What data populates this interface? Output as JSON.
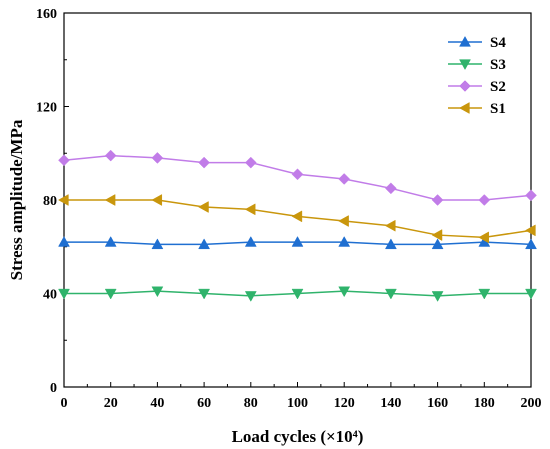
{
  "chart_data": {
    "type": "line",
    "title": "",
    "xlabel": "Load cycles (×10⁴)",
    "ylabel": "Stress amplitude/MPa",
    "xlim": [
      0,
      200
    ],
    "ylim": [
      0,
      160
    ],
    "xticks": [
      0,
      20,
      40,
      60,
      80,
      100,
      120,
      140,
      160,
      180,
      200
    ],
    "yticks": [
      0,
      40,
      80,
      120,
      160
    ],
    "grid": false,
    "legend_position": "top-right",
    "x": [
      0,
      20,
      40,
      60,
      80,
      100,
      120,
      140,
      160,
      180,
      200
    ],
    "series": [
      {
        "name": "S4",
        "color": "#1f6fd1",
        "marker": "triangle-up",
        "values": [
          62,
          62,
          61,
          61,
          62,
          62,
          62,
          61,
          61,
          62,
          61
        ]
      },
      {
        "name": "S3",
        "color": "#2fb36b",
        "marker": "triangle-down",
        "values": [
          40,
          40,
          41,
          40,
          39,
          40,
          41,
          40,
          39,
          40,
          40
        ]
      },
      {
        "name": "S2",
        "color": "#c17ce8",
        "marker": "diamond",
        "values": [
          97,
          99,
          98,
          96,
          96,
          91,
          89,
          85,
          80,
          80,
          82
        ]
      },
      {
        "name": "S1",
        "color": "#c9960c",
        "marker": "triangle-left",
        "values": [
          80,
          80,
          80,
          77,
          76,
          73,
          71,
          69,
          65,
          64,
          67
        ]
      }
    ]
  }
}
